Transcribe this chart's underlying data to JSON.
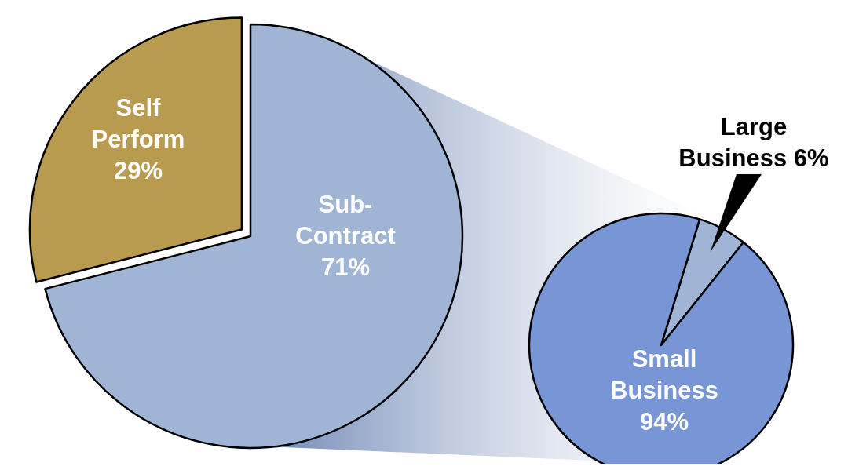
{
  "chart_data": [
    {
      "type": "pie",
      "categories": [
        "Sub-Contract",
        "Self Perform"
      ],
      "values": [
        71,
        29
      ],
      "colors": [
        "#a0b4d6",
        "#b99b4f"
      ],
      "value_labels": [
        "71%",
        "29%"
      ]
    },
    {
      "type": "pie",
      "categories": [
        "Large Business",
        "Small Business"
      ],
      "values": [
        6,
        94
      ],
      "colors": [
        "#a0b4d6",
        "#7895d5"
      ],
      "value_labels": [
        "6%",
        "94%"
      ]
    }
  ]
}
